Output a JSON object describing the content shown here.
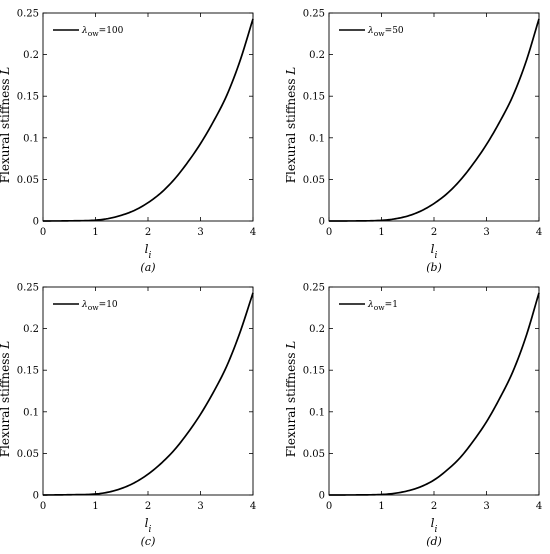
{
  "chart_data": [
    {
      "type": "line",
      "panel_caption": "(a)",
      "ylabel_text": "Flexural stiffness",
      "ylabel_symbol": "L",
      "xlabel_symbol": "l",
      "xlabel_subscript": "i",
      "legend": {
        "symbol": "λ",
        "subscript": "ow",
        "value": "=100",
        "placement": "top-left"
      },
      "xlim": [
        0,
        4
      ],
      "ylim": [
        0,
        0.25
      ],
      "xticks": [
        "0",
        "1",
        "2",
        "3",
        "4"
      ],
      "yticks": [
        "0",
        "0.05",
        "0.1",
        "0.15",
        "0.2",
        "0.25"
      ],
      "grid": false,
      "series": [
        {
          "x": [
            0,
            0.5,
            1.0,
            1.25,
            1.5,
            1.75,
            2.0,
            2.25,
            2.5,
            2.75,
            3.0,
            3.25,
            3.5,
            3.75,
            4.0
          ],
          "y": [
            0,
            0.0002,
            0.001,
            0.003,
            0.007,
            0.013,
            0.022,
            0.034,
            0.05,
            0.07,
            0.093,
            0.12,
            0.151,
            0.192,
            0.243
          ]
        }
      ]
    },
    {
      "type": "line",
      "panel_caption": "(b)",
      "ylabel_text": "Flexural stiffness",
      "ylabel_symbol": "L",
      "xlabel_symbol": "l",
      "xlabel_subscript": "i",
      "legend": {
        "symbol": "λ",
        "subscript": "ow",
        "value": "=50",
        "placement": "top-left"
      },
      "xlim": [
        0,
        4
      ],
      "ylim": [
        0,
        0.25
      ],
      "xticks": [
        "0",
        "1",
        "2",
        "3",
        "4"
      ],
      "yticks": [
        "0",
        "0.05",
        "0.1",
        "0.15",
        "0.2",
        "0.25"
      ],
      "grid": false,
      "series": [
        {
          "x": [
            0,
            0.5,
            1.0,
            1.25,
            1.5,
            1.75,
            2.0,
            2.25,
            2.5,
            2.75,
            3.0,
            3.25,
            3.5,
            3.75,
            4.0
          ],
          "y": [
            0,
            0.0001,
            0.0008,
            0.0025,
            0.006,
            0.012,
            0.021,
            0.033,
            0.049,
            0.069,
            0.092,
            0.119,
            0.15,
            0.191,
            0.243
          ]
        }
      ]
    },
    {
      "type": "line",
      "panel_caption": "(c)",
      "ylabel_text": "Flexural stiffness",
      "ylabel_symbol": "L",
      "xlabel_symbol": "l",
      "xlabel_subscript": "i",
      "legend": {
        "symbol": "λ",
        "subscript": "ow",
        "value": "=10",
        "placement": "top-left"
      },
      "xlim": [
        0,
        4
      ],
      "ylim": [
        0,
        0.25
      ],
      "xticks": [
        "0",
        "1",
        "2",
        "3",
        "4"
      ],
      "yticks": [
        "0",
        "0.05",
        "0.1",
        "0.15",
        "0.2",
        "0.25"
      ],
      "grid": false,
      "series": [
        {
          "x": [
            0,
            0.5,
            1.0,
            1.25,
            1.5,
            1.75,
            2.0,
            2.25,
            2.5,
            2.75,
            3.0,
            3.25,
            3.5,
            3.75,
            4.0
          ],
          "y": [
            0,
            0.0003,
            0.0012,
            0.0035,
            0.008,
            0.015,
            0.025,
            0.038,
            0.054,
            0.074,
            0.097,
            0.124,
            0.155,
            0.195,
            0.243
          ]
        }
      ]
    },
    {
      "type": "line",
      "panel_caption": "(d)",
      "ylabel_text": "Flexural stiffness",
      "ylabel_symbol": "L",
      "xlabel_symbol": "l",
      "xlabel_subscript": "i",
      "legend": {
        "symbol": "λ",
        "subscript": "ow",
        "value": "=1",
        "placement": "top-left"
      },
      "xlim": [
        0,
        4
      ],
      "ylim": [
        0,
        0.25
      ],
      "xticks": [
        "0",
        "1",
        "2",
        "3",
        "4"
      ],
      "yticks": [
        "0",
        "0.05",
        "0.1",
        "0.15",
        "0.2",
        "0.25"
      ],
      "grid": false,
      "series": [
        {
          "x": [
            0,
            0.5,
            1.0,
            1.25,
            1.5,
            1.75,
            2.0,
            2.25,
            2.5,
            2.75,
            3.0,
            3.25,
            3.5,
            3.75,
            4.0
          ],
          "y": [
            0,
            0.0001,
            0.0006,
            0.002,
            0.005,
            0.01,
            0.018,
            0.03,
            0.045,
            0.065,
            0.088,
            0.116,
            0.148,
            0.19,
            0.243
          ]
        }
      ]
    }
  ]
}
